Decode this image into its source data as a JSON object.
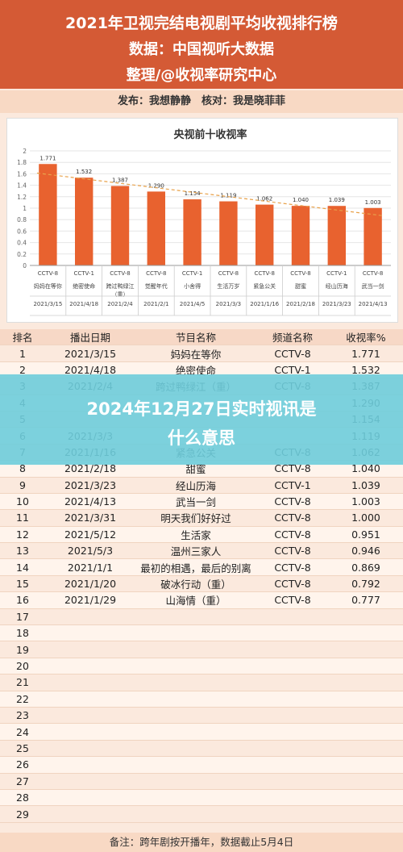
{
  "header": {
    "title": "2021年卫视完结电视剧平均收视排行榜",
    "source": "数据：中国视听大数据",
    "compiler": "整理/@收视率研究中心"
  },
  "publish_line": "发布：我想静静　核对：我是晓菲菲",
  "chart_data": {
    "type": "bar",
    "title": "央视前十收视率",
    "categories": [
      {
        "channel": "CCTV-8",
        "name": "妈妈在等你",
        "date": "2021/3/15"
      },
      {
        "channel": "CCTV-1",
        "name": "绝密使命",
        "date": "2021/4/18"
      },
      {
        "channel": "CCTV-8",
        "name": "跨过鸭绿江（重）",
        "date": "2021/2/4"
      },
      {
        "channel": "CCTV-8",
        "name": "觉醒年代",
        "date": "2021/2/1"
      },
      {
        "channel": "CCTV-1",
        "name": "小舍得",
        "date": "2021/4/5"
      },
      {
        "channel": "CCTV-8",
        "name": "生活万岁",
        "date": "2021/3/3"
      },
      {
        "channel": "CCTV-8",
        "name": "紧急公关",
        "date": "2021/1/16"
      },
      {
        "channel": "CCTV-8",
        "name": "甜蜜",
        "date": "2021/2/18"
      },
      {
        "channel": "CCTV-1",
        "name": "经山历海",
        "date": "2021/3/23"
      },
      {
        "channel": "CCTV-8",
        "name": "武当一剑",
        "date": "2021/4/13"
      }
    ],
    "values": [
      1.771,
      1.532,
      1.387,
      1.29,
      1.154,
      1.119,
      1.062,
      1.04,
      1.039,
      1.003
    ],
    "value_labels": [
      "1.771",
      "1.532",
      "1.387",
      "1.290",
      "1.154",
      "1.119",
      "1.062",
      "1.040",
      "1.039",
      "1.003"
    ],
    "ylim": [
      0,
      2
    ],
    "yticks": [
      "0",
      "0.2",
      "0.4",
      "0.6",
      "0.8",
      "1",
      "1.2",
      "1.4",
      "1.6",
      "1.8",
      "2"
    ],
    "trendline": true,
    "bar_color": "#e8622f",
    "trend_color": "#e8a24b",
    "grid": true
  },
  "table": {
    "headers": [
      "排名",
      "播出日期",
      "节目名称",
      "频道名称",
      "收视率%"
    ],
    "rows": [
      [
        "1",
        "2021/3/15",
        "妈妈在等你",
        "CCTV-8",
        "1.771"
      ],
      [
        "2",
        "2021/4/18",
        "绝密使命",
        "CCTV-1",
        "1.532"
      ],
      [
        "3",
        "2021/2/4",
        "跨过鸭绿江（重）",
        "CCTV-8",
        "1.387"
      ],
      [
        "4",
        "",
        "",
        "",
        "1.290"
      ],
      [
        "5",
        "",
        "",
        "",
        "1.154"
      ],
      [
        "6",
        "2021/3/3",
        "",
        "",
        "1.119"
      ],
      [
        "7",
        "2021/1/16",
        "紧急公关",
        "CCTV-8",
        "1.062"
      ],
      [
        "8",
        "2021/2/18",
        "甜蜜",
        "CCTV-8",
        "1.040"
      ],
      [
        "9",
        "2021/3/23",
        "经山历海",
        "CCTV-1",
        "1.039"
      ],
      [
        "10",
        "2021/4/13",
        "武当一剑",
        "CCTV-8",
        "1.003"
      ],
      [
        "11",
        "2021/3/31",
        "明天我们好好过",
        "CCTV-8",
        "1.000"
      ],
      [
        "12",
        "2021/5/12",
        "生活家",
        "CCTV-8",
        "0.951"
      ],
      [
        "13",
        "2021/5/3",
        "温州三家人",
        "CCTV-8",
        "0.946"
      ],
      [
        "14",
        "2021/1/1",
        "最初的相遇，最后的别离",
        "CCTV-8",
        "0.869"
      ],
      [
        "15",
        "2021/1/20",
        "破冰行动（重）",
        "CCTV-8",
        "0.792"
      ],
      [
        "16",
        "2021/1/29",
        "山海情（重）",
        "CCTV-8",
        "0.777"
      ],
      [
        "17",
        "",
        "",
        "",
        ""
      ],
      [
        "18",
        "",
        "",
        "",
        ""
      ],
      [
        "19",
        "",
        "",
        "",
        ""
      ],
      [
        "20",
        "",
        "",
        "",
        ""
      ],
      [
        "21",
        "",
        "",
        "",
        ""
      ],
      [
        "22",
        "",
        "",
        "",
        ""
      ],
      [
        "23",
        "",
        "",
        "",
        ""
      ],
      [
        "24",
        "",
        "",
        "",
        ""
      ],
      [
        "25",
        "",
        "",
        "",
        ""
      ],
      [
        "26",
        "",
        "",
        "",
        ""
      ],
      [
        "27",
        "",
        "",
        "",
        ""
      ],
      [
        "28",
        "",
        "",
        "",
        ""
      ],
      [
        "29",
        "",
        "",
        "",
        ""
      ]
    ]
  },
  "footer": "备注：跨年剧按开播年，数据截止5月4日",
  "overlay": {
    "line1": "2024年12月27日实时视讯是",
    "line2": "什么意思"
  }
}
